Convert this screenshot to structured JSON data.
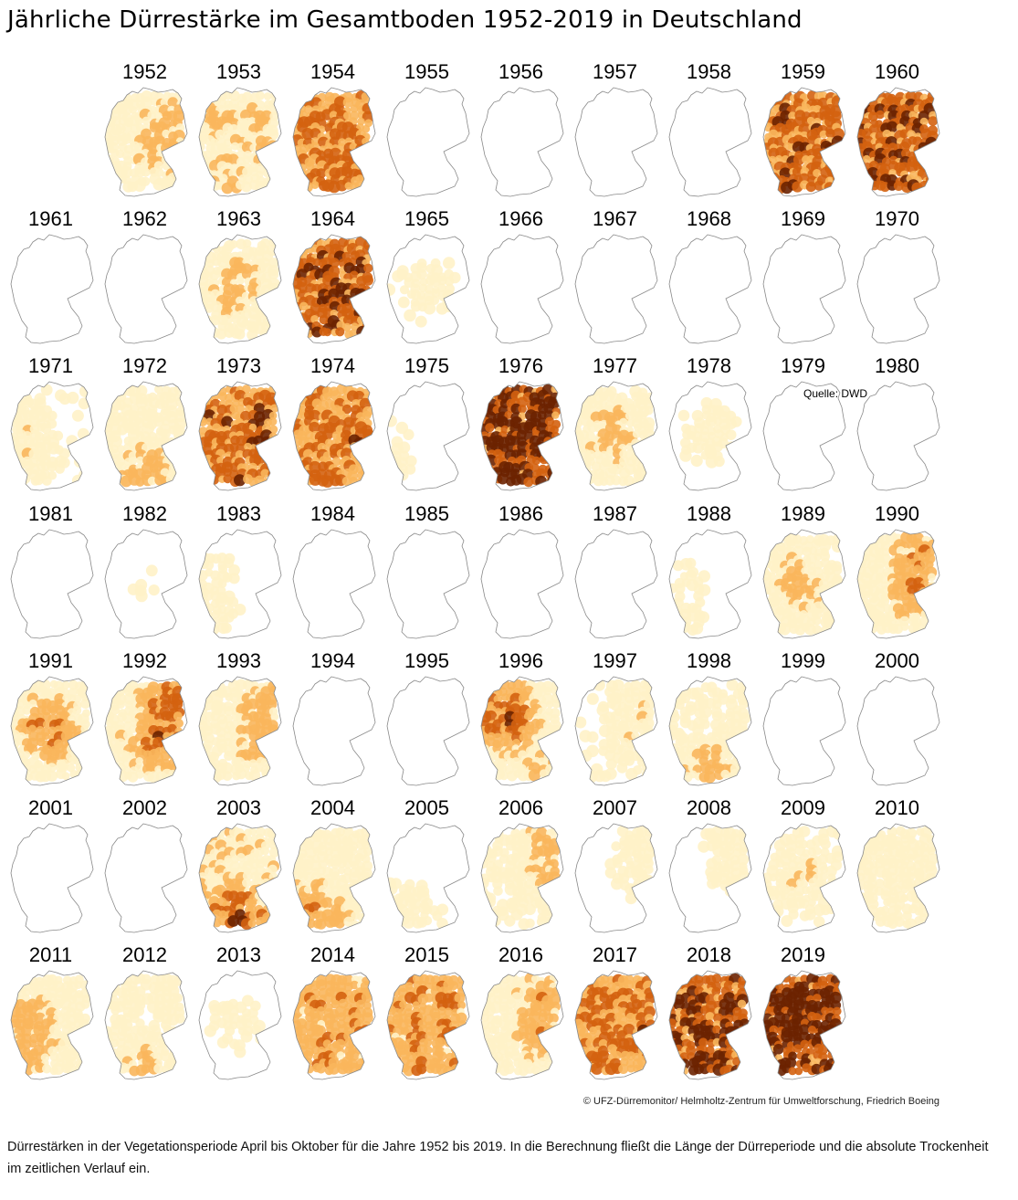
{
  "page": {
    "title": "Jährliche Dürrestärke im Gesamtboden 1952-2019 in Deutschland",
    "source_label": "Quelle: DWD",
    "copyright": "© UFZ-Dürremonitor/ Helmholtz-Zentrum für Umweltforschung, Friedrich Boeing",
    "caption": "Dürrestärken in der Vegetationsperiode April bis Oktober für die Jahre 1952 bis 2019. In die Berechnung fließt die Länge der Dürreperiode und die absolute Trockenheit im zeitlichen Verlauf ein."
  },
  "chart_data": {
    "type": "heatmap",
    "title": "Jährliche Dürrestärke im Gesamtboden 1952-2019 in Deutschland",
    "xlabel": "",
    "ylabel": "",
    "value_scale": "relative drought intensity, 0 = none, 1 = extreme (estimated from map shading)",
    "colors": {
      "none": "#ffffff",
      "low": "#fff2c8",
      "moderate": "#f9b65c",
      "high": "#d4620f",
      "extreme": "#6b2200"
    },
    "years": [
      {
        "year": "1952",
        "intensity": 0.35,
        "region": "east"
      },
      {
        "year": "1953",
        "intensity": 0.25,
        "region": "widespread"
      },
      {
        "year": "1954",
        "intensity": 0.55,
        "region": "widespread"
      },
      {
        "year": "1955",
        "intensity": 0.0,
        "region": "none"
      },
      {
        "year": "1956",
        "intensity": 0.02,
        "region": "north"
      },
      {
        "year": "1957",
        "intensity": 0.02,
        "region": "north"
      },
      {
        "year": "1958",
        "intensity": 0.0,
        "region": "none"
      },
      {
        "year": "1959",
        "intensity": 0.65,
        "region": "widespread"
      },
      {
        "year": "1960",
        "intensity": 0.75,
        "region": "widespread"
      },
      {
        "year": "1961",
        "intensity": 0.03,
        "region": "south"
      },
      {
        "year": "1962",
        "intensity": 0.05,
        "region": "south"
      },
      {
        "year": "1963",
        "intensity": 0.35,
        "region": "center"
      },
      {
        "year": "1964",
        "intensity": 0.75,
        "region": "widespread"
      },
      {
        "year": "1965",
        "intensity": 0.15,
        "region": "center"
      },
      {
        "year": "1966",
        "intensity": 0.0,
        "region": "none"
      },
      {
        "year": "1967",
        "intensity": 0.0,
        "region": "none"
      },
      {
        "year": "1968",
        "intensity": 0.02,
        "region": "west"
      },
      {
        "year": "1969",
        "intensity": 0.05,
        "region": "south"
      },
      {
        "year": "1970",
        "intensity": 0.0,
        "region": "none"
      },
      {
        "year": "1971",
        "intensity": 0.2,
        "region": "west"
      },
      {
        "year": "1972",
        "intensity": 0.35,
        "region": "south"
      },
      {
        "year": "1973",
        "intensity": 0.65,
        "region": "widespread"
      },
      {
        "year": "1974",
        "intensity": 0.55,
        "region": "widespread"
      },
      {
        "year": "1975",
        "intensity": 0.08,
        "region": "west"
      },
      {
        "year": "1976",
        "intensity": 0.9,
        "region": "widespread"
      },
      {
        "year": "1977",
        "intensity": 0.35,
        "region": "center"
      },
      {
        "year": "1978",
        "intensity": 0.15,
        "region": "center"
      },
      {
        "year": "1979",
        "intensity": 0.0,
        "region": "none"
      },
      {
        "year": "1980",
        "intensity": 0.0,
        "region": "none"
      },
      {
        "year": "1981",
        "intensity": 0.03,
        "region": "south"
      },
      {
        "year": "1982",
        "intensity": 0.08,
        "region": "center"
      },
      {
        "year": "1983",
        "intensity": 0.12,
        "region": "west"
      },
      {
        "year": "1984",
        "intensity": 0.02,
        "region": "west"
      },
      {
        "year": "1985",
        "intensity": 0.03,
        "region": "south"
      },
      {
        "year": "1986",
        "intensity": 0.0,
        "region": "none"
      },
      {
        "year": "1987",
        "intensity": 0.02,
        "region": "north"
      },
      {
        "year": "1988",
        "intensity": 0.1,
        "region": "west"
      },
      {
        "year": "1989",
        "intensity": 0.35,
        "region": "center"
      },
      {
        "year": "1990",
        "intensity": 0.45,
        "region": "east"
      },
      {
        "year": "1991",
        "intensity": 0.5,
        "region": "center"
      },
      {
        "year": "1992",
        "intensity": 0.6,
        "region": "east"
      },
      {
        "year": "1993",
        "intensity": 0.35,
        "region": "east"
      },
      {
        "year": "1994",
        "intensity": 0.0,
        "region": "none"
      },
      {
        "year": "1995",
        "intensity": 0.0,
        "region": "none"
      },
      {
        "year": "1996",
        "intensity": 0.6,
        "region": "northwest"
      },
      {
        "year": "1997",
        "intensity": 0.2,
        "region": "east"
      },
      {
        "year": "1998",
        "intensity": 0.3,
        "region": "south"
      },
      {
        "year": "1999",
        "intensity": 0.03,
        "region": "south"
      },
      {
        "year": "2000",
        "intensity": 0.05,
        "region": "east"
      },
      {
        "year": "2001",
        "intensity": 0.05,
        "region": "center"
      },
      {
        "year": "2002",
        "intensity": 0.0,
        "region": "none"
      },
      {
        "year": "2003",
        "intensity": 0.65,
        "region": "south"
      },
      {
        "year": "2004",
        "intensity": 0.4,
        "region": "southwest"
      },
      {
        "year": "2005",
        "intensity": 0.15,
        "region": "southwest"
      },
      {
        "year": "2006",
        "intensity": 0.3,
        "region": "northeast"
      },
      {
        "year": "2007",
        "intensity": 0.15,
        "region": "northeast"
      },
      {
        "year": "2008",
        "intensity": 0.15,
        "region": "northeast"
      },
      {
        "year": "2009",
        "intensity": 0.25,
        "region": "center"
      },
      {
        "year": "2010",
        "intensity": 0.15,
        "region": "widespread"
      },
      {
        "year": "2011",
        "intensity": 0.4,
        "region": "west"
      },
      {
        "year": "2012",
        "intensity": 0.3,
        "region": "south"
      },
      {
        "year": "2013",
        "intensity": 0.12,
        "region": "center"
      },
      {
        "year": "2014",
        "intensity": 0.45,
        "region": "widespread"
      },
      {
        "year": "2015",
        "intensity": 0.5,
        "region": "widespread"
      },
      {
        "year": "2016",
        "intensity": 0.4,
        "region": "east"
      },
      {
        "year": "2017",
        "intensity": 0.55,
        "region": "widespread"
      },
      {
        "year": "2018",
        "intensity": 0.8,
        "region": "widespread"
      },
      {
        "year": "2019",
        "intensity": 0.95,
        "region": "widespread"
      }
    ]
  }
}
